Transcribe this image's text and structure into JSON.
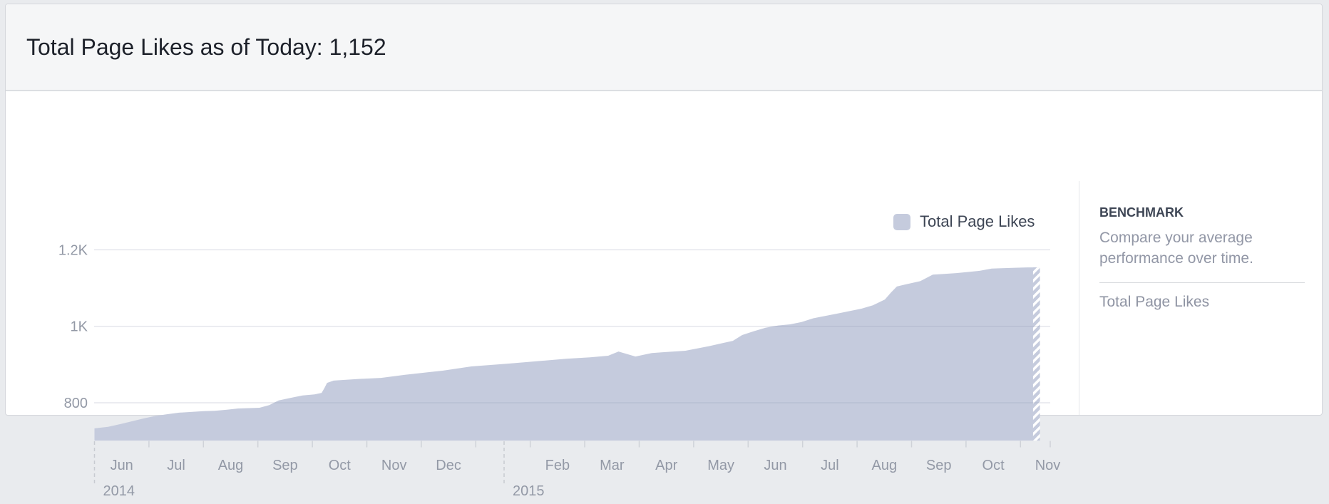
{
  "page": {
    "title": "Total Page Likes as of Today: 1,152"
  },
  "legend": {
    "label": "Total Page Likes"
  },
  "benchmark": {
    "heading": "BENCHMARK",
    "description": "Compare your average performance over time.",
    "metric_label": "Total Page Likes"
  },
  "colors": {
    "area": "#c5cbdd",
    "grid": "#8e98b0",
    "axis_text": "#9399a6",
    "dashed_marker": "#c8cbd1",
    "tick": "#cfd2d8",
    "title_text": "#1d212a",
    "legend_text": "#3d4554"
  },
  "chart_data": {
    "type": "area",
    "title": "Total Page Likes",
    "final_value": 1152,
    "grid": true,
    "legend_position": "top-right",
    "x_axis": {
      "start": "Jun 2014",
      "end": "Nov 2015",
      "unit": "months since 2014-06-01",
      "month_labels": [
        "Jun",
        "Jul",
        "Aug",
        "Sep",
        "Oct",
        "Nov",
        "Dec",
        "",
        "Feb",
        "Mar",
        "Apr",
        "May",
        "Jun",
        "Jul",
        "Aug",
        "Sep",
        "Oct",
        "Nov"
      ],
      "year_markers": [
        {
          "label": "2014",
          "t": 0
        },
        {
          "label": "2015",
          "t": 7.52
        }
      ]
    },
    "y_axis": {
      "min": 701,
      "max": 1259,
      "ticks": [
        {
          "label": "800",
          "value": 800
        },
        {
          "label": "1K",
          "value": 1000
        },
        {
          "label": "1.2K",
          "value": 1200
        }
      ]
    },
    "series": [
      {
        "name": "Total Page Likes",
        "color": "#c5cbdd",
        "projected_tail_t": 17.23,
        "points": [
          [
            0,
            733
          ],
          [
            0.25,
            737
          ],
          [
            0.47,
            744
          ],
          [
            0.7,
            752
          ],
          [
            0.9,
            759
          ],
          [
            1.1,
            765
          ],
          [
            1.33,
            770
          ],
          [
            1.55,
            774
          ],
          [
            1.77,
            776
          ],
          [
            2.0,
            778
          ],
          [
            2.21,
            779
          ],
          [
            2.43,
            782
          ],
          [
            2.64,
            785
          ],
          [
            3.03,
            787
          ],
          [
            3.21,
            794
          ],
          [
            3.38,
            806
          ],
          [
            3.61,
            813
          ],
          [
            3.82,
            819
          ],
          [
            4.04,
            822
          ],
          [
            4.17,
            826
          ],
          [
            4.22,
            838
          ],
          [
            4.27,
            852
          ],
          [
            4.39,
            858
          ],
          [
            4.82,
            862
          ],
          [
            5.26,
            865
          ],
          [
            5.7,
            873
          ],
          [
            6.13,
            880
          ],
          [
            6.4,
            884
          ],
          [
            6.92,
            895
          ],
          [
            7.57,
            902
          ],
          [
            8.23,
            910
          ],
          [
            8.66,
            915
          ],
          [
            9.1,
            919
          ],
          [
            9.43,
            923
          ],
          [
            9.62,
            934
          ],
          [
            9.93,
            921
          ],
          [
            10.23,
            930
          ],
          [
            10.41,
            932
          ],
          [
            10.85,
            936
          ],
          [
            11.28,
            948
          ],
          [
            11.72,
            962
          ],
          [
            11.89,
            977
          ],
          [
            12.1,
            987
          ],
          [
            12.32,
            996
          ],
          [
            12.55,
            1002
          ],
          [
            12.77,
            1005
          ],
          [
            12.98,
            1011
          ],
          [
            13.2,
            1021
          ],
          [
            13.63,
            1033
          ],
          [
            14.08,
            1046
          ],
          [
            14.29,
            1055
          ],
          [
            14.51,
            1070
          ],
          [
            14.62,
            1088
          ],
          [
            14.73,
            1104
          ],
          [
            14.94,
            1111
          ],
          [
            15.16,
            1118
          ],
          [
            15.39,
            1135
          ],
          [
            15.6,
            1137
          ],
          [
            15.82,
            1139
          ],
          [
            16.04,
            1142
          ],
          [
            16.25,
            1145
          ],
          [
            16.47,
            1151
          ],
          [
            16.9,
            1153
          ],
          [
            17.13,
            1154
          ],
          [
            17.35,
            1154
          ]
        ]
      }
    ]
  }
}
